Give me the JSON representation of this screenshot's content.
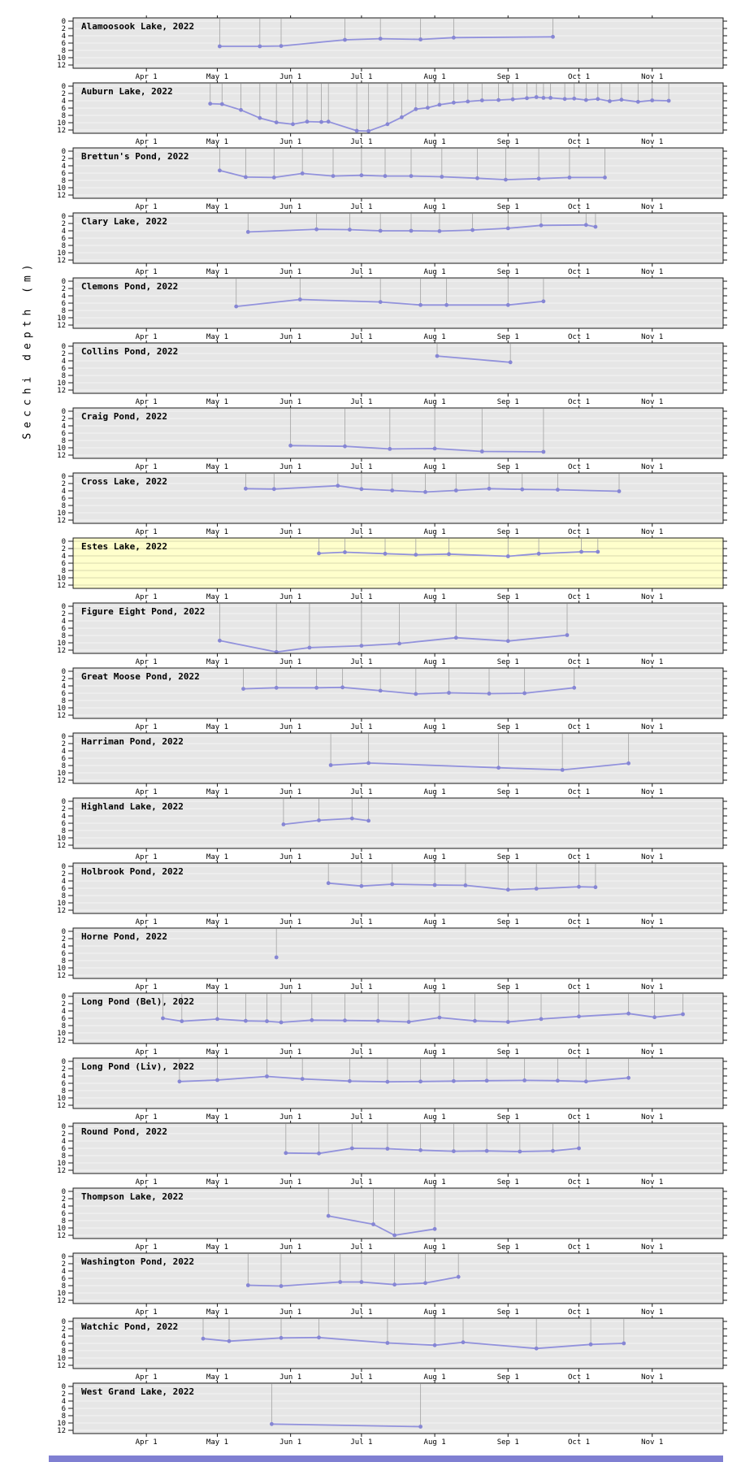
{
  "ylabel": "Secchi depth (m)",
  "colors": {
    "series_line": "#9292dc",
    "marker": "#8686d4",
    "panel_bg": "#e6e6e6",
    "highlight_bg": "#ffffcc",
    "grid": "#f4f4f4",
    "grid_highlight": "#d8d8ae",
    "dropline": "#a3a3a3",
    "border": "#1a1a1a",
    "bottom_strip": "#7f7fd2",
    "text": "#000000"
  },
  "chart_data": {
    "type": "line",
    "title": "",
    "xlabel": "",
    "ylabel": "Secchi depth (m)",
    "y_ticks": [
      0,
      2,
      4,
      6,
      8,
      10,
      12
    ],
    "ylim": [
      0,
      12
    ],
    "y_axis_reversed": true,
    "x_domain_dates": [
      "03-01",
      "12-01"
    ],
    "x_ticks": [
      {
        "label": "Apr 1",
        "date": "04-01"
      },
      {
        "label": "May 1",
        "date": "05-01"
      },
      {
        "label": "Jun 1",
        "date": "06-01"
      },
      {
        "label": "Jul 1",
        "date": "07-01"
      },
      {
        "label": "Aug 1",
        "date": "08-01"
      },
      {
        "label": "Sep 1",
        "date": "09-01"
      },
      {
        "label": "Oct 1",
        "date": "10-01"
      },
      {
        "label": "Nov 1",
        "date": "11-01"
      }
    ],
    "legend": "none",
    "grid": "horizontal-only",
    "panels": [
      {
        "title": "Alamoosook Lake, 2022",
        "highlight": false,
        "points": [
          [
            "05-02",
            6.9
          ],
          [
            "05-19",
            6.9
          ],
          [
            "05-28",
            6.8
          ],
          [
            "06-24",
            5.1
          ],
          [
            "07-09",
            4.8
          ],
          [
            "07-26",
            5.0
          ],
          [
            "08-09",
            4.5
          ],
          [
            "09-20",
            4.3
          ]
        ]
      },
      {
        "title": "Auburn Lake, 2022",
        "highlight": false,
        "points": [
          [
            "04-28",
            4.8
          ],
          [
            "05-03",
            4.9
          ],
          [
            "05-11",
            6.5
          ],
          [
            "05-19",
            8.7
          ],
          [
            "05-26",
            9.9
          ],
          [
            "06-02",
            10.4
          ],
          [
            "06-08",
            9.7
          ],
          [
            "06-14",
            9.8
          ],
          [
            "06-17",
            9.7
          ],
          [
            "06-29",
            12.2
          ],
          [
            "07-04",
            12.3
          ],
          [
            "07-12",
            10.4
          ],
          [
            "07-18",
            8.5
          ],
          [
            "07-24",
            6.3
          ],
          [
            "07-29",
            5.9
          ],
          [
            "08-03",
            5.1
          ],
          [
            "08-09",
            4.5
          ],
          [
            "08-15",
            4.2
          ],
          [
            "08-21",
            3.9
          ],
          [
            "08-28",
            3.8
          ],
          [
            "09-03",
            3.6
          ],
          [
            "09-09",
            3.3
          ],
          [
            "09-13",
            3.0
          ],
          [
            "09-16",
            3.2
          ],
          [
            "09-19",
            3.2
          ],
          [
            "09-25",
            3.5
          ],
          [
            "09-29",
            3.4
          ],
          [
            "10-04",
            3.8
          ],
          [
            "10-09",
            3.5
          ],
          [
            "10-14",
            4.1
          ],
          [
            "10-19",
            3.7
          ],
          [
            "10-26",
            4.3
          ],
          [
            "11-01",
            3.9
          ],
          [
            "11-08",
            4.0
          ]
        ]
      },
      {
        "title": "Brettun's Pond, 2022",
        "highlight": false,
        "points": [
          [
            "05-02",
            5.3
          ],
          [
            "05-13",
            7.1
          ],
          [
            "05-25",
            7.2
          ],
          [
            "06-06",
            6.1
          ],
          [
            "06-19",
            6.8
          ],
          [
            "07-01",
            6.6
          ],
          [
            "07-11",
            6.8
          ],
          [
            "07-22",
            6.8
          ],
          [
            "08-04",
            7.0
          ],
          [
            "08-19",
            7.4
          ],
          [
            "08-31",
            7.8
          ],
          [
            "09-14",
            7.5
          ],
          [
            "09-27",
            7.2
          ],
          [
            "10-12",
            7.2
          ]
        ]
      },
      {
        "title": "Clary Lake, 2022",
        "highlight": false,
        "points": [
          [
            "05-14",
            4.3
          ],
          [
            "06-12",
            3.6
          ],
          [
            "06-26",
            3.7
          ],
          [
            "07-09",
            4.0
          ],
          [
            "07-22",
            4.0
          ],
          [
            "08-03",
            4.1
          ],
          [
            "08-17",
            3.8
          ],
          [
            "09-01",
            3.3
          ],
          [
            "09-15",
            2.5
          ],
          [
            "10-04",
            2.4
          ],
          [
            "10-08",
            2.9
          ]
        ]
      },
      {
        "title": "Clemons Pond, 2022",
        "highlight": false,
        "points": [
          [
            "05-09",
            6.9
          ],
          [
            "06-05",
            5.0
          ],
          [
            "07-09",
            5.7
          ],
          [
            "07-26",
            6.5
          ],
          [
            "08-06",
            6.5
          ],
          [
            "09-01",
            6.5
          ],
          [
            "09-16",
            5.5
          ]
        ]
      },
      {
        "title": "Collins Pond, 2022",
        "highlight": false,
        "points": [
          [
            "08-02",
            2.7
          ],
          [
            "09-02",
            4.4
          ]
        ]
      },
      {
        "title": "Craig Pond, 2022",
        "highlight": false,
        "points": [
          [
            "06-01",
            9.4
          ],
          [
            "06-24",
            9.6
          ],
          [
            "07-13",
            10.3
          ],
          [
            "08-01",
            10.2
          ],
          [
            "08-21",
            11.0
          ],
          [
            "09-16",
            11.1
          ]
        ]
      },
      {
        "title": "Cross Lake, 2022",
        "highlight": false,
        "points": [
          [
            "05-13",
            3.4
          ],
          [
            "05-25",
            3.5
          ],
          [
            "06-21",
            2.6
          ],
          [
            "07-01",
            3.5
          ],
          [
            "07-14",
            3.9
          ],
          [
            "07-28",
            4.3
          ],
          [
            "08-10",
            3.9
          ],
          [
            "08-24",
            3.4
          ],
          [
            "09-07",
            3.6
          ],
          [
            "09-22",
            3.7
          ],
          [
            "10-18",
            4.1
          ]
        ]
      },
      {
        "title": "Estes Lake, 2022",
        "highlight": true,
        "points": [
          [
            "06-13",
            3.3
          ],
          [
            "06-24",
            3.0
          ],
          [
            "07-11",
            3.4
          ],
          [
            "07-24",
            3.7
          ],
          [
            "08-07",
            3.5
          ],
          [
            "09-01",
            4.1
          ],
          [
            "09-14",
            3.4
          ],
          [
            "10-02",
            2.9
          ],
          [
            "10-09",
            2.9
          ]
        ]
      },
      {
        "title": "Figure Eight Pond, 2022",
        "highlight": false,
        "points": [
          [
            "05-02",
            9.4
          ],
          [
            "05-26",
            12.5
          ],
          [
            "06-09",
            11.3
          ],
          [
            "07-01",
            10.8
          ],
          [
            "07-17",
            10.2
          ],
          [
            "08-10",
            8.6
          ],
          [
            "09-01",
            9.5
          ],
          [
            "09-26",
            7.9
          ]
        ]
      },
      {
        "title": "Great Moose Pond, 2022",
        "highlight": false,
        "points": [
          [
            "05-12",
            4.8
          ],
          [
            "05-26",
            4.5
          ],
          [
            "06-12",
            4.5
          ],
          [
            "06-23",
            4.4
          ],
          [
            "07-09",
            5.3
          ],
          [
            "07-24",
            6.2
          ],
          [
            "08-07",
            5.9
          ],
          [
            "08-24",
            6.1
          ],
          [
            "09-08",
            6.0
          ],
          [
            "09-29",
            4.5
          ]
        ]
      },
      {
        "title": "Harriman Pond, 2022",
        "highlight": false,
        "points": [
          [
            "06-18",
            7.9
          ],
          [
            "07-04",
            7.3
          ],
          [
            "08-28",
            8.6
          ],
          [
            "09-24",
            9.2
          ],
          [
            "10-22",
            7.4
          ]
        ]
      },
      {
        "title": "Highland Lake, 2022",
        "highlight": false,
        "points": [
          [
            "05-29",
            6.3
          ],
          [
            "06-13",
            5.2
          ],
          [
            "06-27",
            4.7
          ],
          [
            "07-04",
            5.3
          ]
        ]
      },
      {
        "title": "Holbrook Pond, 2022",
        "highlight": false,
        "points": [
          [
            "06-17",
            4.6
          ],
          [
            "07-01",
            5.4
          ],
          [
            "07-14",
            4.9
          ],
          [
            "08-01",
            5.1
          ],
          [
            "08-14",
            5.2
          ],
          [
            "09-01",
            6.4
          ],
          [
            "09-13",
            6.1
          ],
          [
            "10-01",
            5.6
          ],
          [
            "10-08",
            5.7
          ]
        ]
      },
      {
        "title": "Horne Pond, 2022",
        "highlight": false,
        "points": [
          [
            "05-26",
            7.1
          ]
        ]
      },
      {
        "title": "Long Pond (Bel), 2022",
        "highlight": false,
        "points": [
          [
            "04-08",
            6.0
          ],
          [
            "04-16",
            6.8
          ],
          [
            "05-01",
            6.2
          ],
          [
            "05-13",
            6.7
          ],
          [
            "05-22",
            6.8
          ],
          [
            "05-28",
            7.1
          ],
          [
            "06-10",
            6.5
          ],
          [
            "06-24",
            6.6
          ],
          [
            "07-08",
            6.7
          ],
          [
            "07-21",
            7.0
          ],
          [
            "08-03",
            5.8
          ],
          [
            "08-18",
            6.7
          ],
          [
            "09-01",
            7.0
          ],
          [
            "09-15",
            6.2
          ],
          [
            "10-01",
            5.5
          ],
          [
            "10-22",
            4.7
          ],
          [
            "11-02",
            5.7
          ],
          [
            "11-14",
            4.9
          ]
        ]
      },
      {
        "title": "Long Pond (Liv), 2022",
        "highlight": false,
        "points": [
          [
            "04-15",
            5.5
          ],
          [
            "05-01",
            5.1
          ],
          [
            "05-22",
            4.1
          ],
          [
            "06-06",
            4.8
          ],
          [
            "06-26",
            5.4
          ],
          [
            "07-12",
            5.6
          ],
          [
            "07-26",
            5.5
          ],
          [
            "08-09",
            5.4
          ],
          [
            "08-23",
            5.3
          ],
          [
            "09-08",
            5.2
          ],
          [
            "09-22",
            5.3
          ],
          [
            "10-04",
            5.5
          ],
          [
            "10-22",
            4.5
          ]
        ]
      },
      {
        "title": "Round Pond, 2022",
        "highlight": false,
        "points": [
          [
            "05-30",
            7.3
          ],
          [
            "06-13",
            7.4
          ],
          [
            "06-27",
            6.0
          ],
          [
            "07-12",
            6.1
          ],
          [
            "07-26",
            6.5
          ],
          [
            "08-09",
            6.8
          ],
          [
            "08-23",
            6.7
          ],
          [
            "09-06",
            6.9
          ],
          [
            "09-20",
            6.7
          ],
          [
            "10-01",
            6.0
          ]
        ]
      },
      {
        "title": "Thompson Lake, 2022",
        "highlight": false,
        "points": [
          [
            "06-17",
            6.7
          ],
          [
            "07-06",
            9.0
          ],
          [
            "07-15",
            12.0
          ],
          [
            "08-01",
            10.3
          ]
        ]
      },
      {
        "title": "Washington Pond, 2022",
        "highlight": false,
        "points": [
          [
            "05-14",
            7.9
          ],
          [
            "05-28",
            8.1
          ],
          [
            "06-22",
            7.0
          ],
          [
            "07-01",
            7.0
          ],
          [
            "07-15",
            7.7
          ],
          [
            "07-28",
            7.3
          ],
          [
            "08-11",
            5.6
          ]
        ]
      },
      {
        "title": "Watchic Pond, 2022",
        "highlight": false,
        "points": [
          [
            "04-25",
            4.7
          ],
          [
            "05-06",
            5.4
          ],
          [
            "05-28",
            4.5
          ],
          [
            "06-13",
            4.4
          ],
          [
            "07-12",
            5.9
          ],
          [
            "08-01",
            6.5
          ],
          [
            "08-13",
            5.7
          ],
          [
            "09-13",
            7.4
          ],
          [
            "10-06",
            6.3
          ],
          [
            "10-20",
            6.0
          ]
        ]
      },
      {
        "title": "West Grand Lake, 2022",
        "highlight": false,
        "points": [
          [
            "05-24",
            10.3
          ],
          [
            "07-26",
            11.0
          ]
        ]
      }
    ]
  }
}
